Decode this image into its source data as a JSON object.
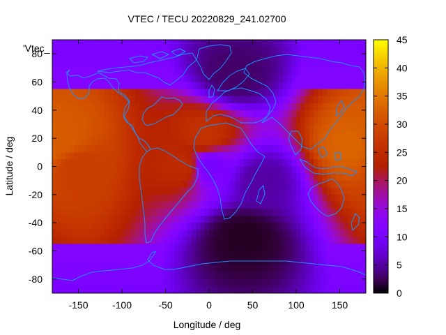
{
  "chart_data": {
    "type": "heatmap",
    "title": "VTEC / TECU 20220829_241.02700",
    "xlabel": "Longitude / deg",
    "ylabel": "Latitude / deg",
    "series_label": "'Vtec_",
    "xlim": [
      -180,
      180
    ],
    "ylim": [
      -90,
      90
    ],
    "zlim": [
      0,
      45
    ],
    "x_ticks": [
      -150,
      -100,
      -50,
      0,
      50,
      100,
      150
    ],
    "y_ticks": [
      -80,
      -60,
      -40,
      -20,
      0,
      20,
      40,
      60,
      80
    ],
    "z_ticks": [
      0,
      5,
      10,
      15,
      20,
      25,
      30,
      35,
      40,
      45
    ],
    "colormap": "gnuplot-pm3d-black-purple-red-yellow",
    "coastline_color": "#1e90ff",
    "features": [
      {
        "lon": 165,
        "lat": 15,
        "vtec": 33
      },
      {
        "lon": -170,
        "lat": 18,
        "vtec": 32
      },
      {
        "lon": -150,
        "lat": 0,
        "vtec": 28
      },
      {
        "lon": -5,
        "lat": 22,
        "vtec": 26
      },
      {
        "lon": -30,
        "lat": 0,
        "vtec": 25
      },
      {
        "lon": 40,
        "lat": -50,
        "vtec": 1
      },
      {
        "lon": 30,
        "lat": 65,
        "vtec": 3
      },
      {
        "lon": 60,
        "lat": -10,
        "vtec": 5
      },
      {
        "lon": 0,
        "lat": 0,
        "vtec": 10
      }
    ]
  }
}
